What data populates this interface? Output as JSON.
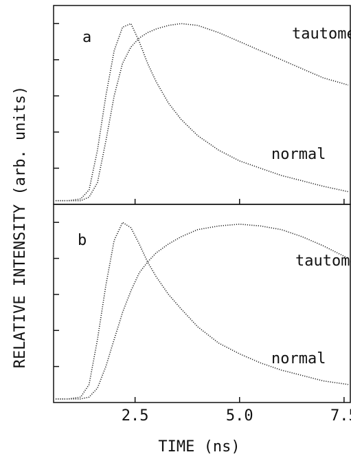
{
  "chart_data": {
    "type": "line",
    "x_label": "TIME (ns)",
    "y_label": "RELATIVE INTENSITY (arb. units)",
    "xlim": [
      0.55,
      7.65
    ],
    "xticks": [
      2.5,
      {
        "value": 5,
        "label": "5.0"
      },
      7.5
    ],
    "x": [
      0.6,
      0.9,
      1.2,
      1.4,
      1.6,
      1.8,
      2.0,
      2.2,
      2.4,
      2.6,
      2.8,
      3.0,
      3.3,
      3.6,
      4.0,
      4.5,
      5.0,
      5.5,
      6.0,
      6.5,
      7.0,
      7.6
    ],
    "panels": [
      {
        "label": "a",
        "ylim": [
          0,
          1.1
        ],
        "yticks": [
          0.2,
          0.4,
          0.6,
          0.8,
          1.0
        ],
        "series": [
          {
            "name": "tautomer",
            "color": "#222222",
            "values": [
              0.02,
              0.02,
              0.02,
              0.04,
              0.12,
              0.35,
              0.6,
              0.78,
              0.87,
              0.92,
              0.95,
              0.97,
              0.99,
              1.0,
              0.99,
              0.95,
              0.9,
              0.85,
              0.8,
              0.75,
              0.7,
              0.66
            ]
          },
          {
            "name": "normal",
            "color": "#222222",
            "values": [
              0.02,
              0.02,
              0.03,
              0.08,
              0.3,
              0.6,
              0.85,
              0.98,
              1.0,
              0.9,
              0.78,
              0.68,
              0.56,
              0.47,
              0.38,
              0.3,
              0.24,
              0.2,
              0.16,
              0.13,
              0.1,
              0.07
            ]
          }
        ]
      },
      {
        "label": "b",
        "ylim": [
          0,
          1.1
        ],
        "yticks": [
          0.2,
          0.4,
          0.6,
          0.8,
          1.0
        ],
        "series": [
          {
            "name": "tautomer",
            "color": "#222222",
            "values": [
              0.02,
              0.02,
              0.02,
              0.03,
              0.08,
              0.2,
              0.35,
              0.5,
              0.62,
              0.72,
              0.78,
              0.83,
              0.88,
              0.92,
              0.96,
              0.98,
              0.99,
              0.98,
              0.96,
              0.92,
              0.87,
              0.8
            ]
          },
          {
            "name": "normal",
            "color": "#222222",
            "values": [
              0.02,
              0.02,
              0.03,
              0.1,
              0.35,
              0.65,
              0.9,
              1.0,
              0.97,
              0.88,
              0.78,
              0.7,
              0.6,
              0.52,
              0.42,
              0.33,
              0.27,
              0.22,
              0.18,
              0.15,
              0.12,
              0.1
            ]
          }
        ]
      }
    ]
  }
}
